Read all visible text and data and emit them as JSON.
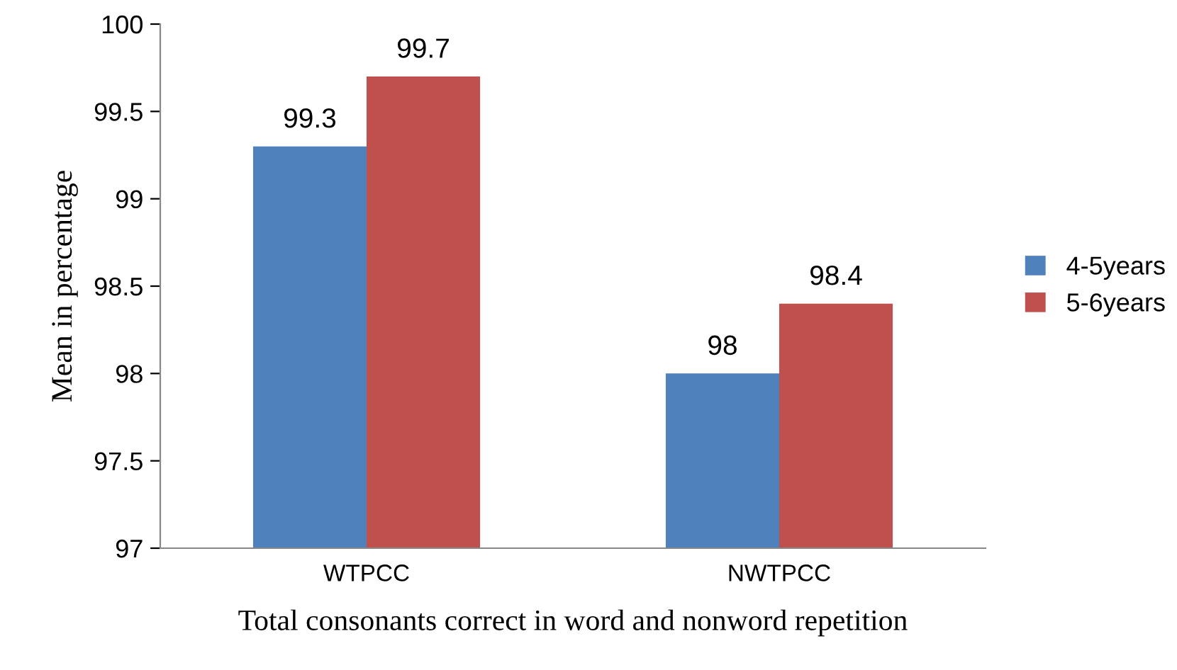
{
  "chart_data": {
    "type": "bar",
    "xlabel": "Total consonants correct in word and nonword repetition",
    "ylabel": "Mean in percentage",
    "categories": [
      "WTPCC",
      "NWTPCC"
    ],
    "series": [
      {
        "name": "4-5years",
        "color": "#4f81bd",
        "values": [
          99.3,
          98
        ]
      },
      {
        "name": "5-6years",
        "color": "#c0504d",
        "values": [
          99.7,
          98.4
        ]
      }
    ],
    "ylim": [
      97,
      100
    ],
    "yticks": [
      97,
      97.5,
      98,
      98.5,
      99,
      99.5,
      100
    ],
    "grid": false,
    "legend": "right",
    "data_labels": true
  }
}
